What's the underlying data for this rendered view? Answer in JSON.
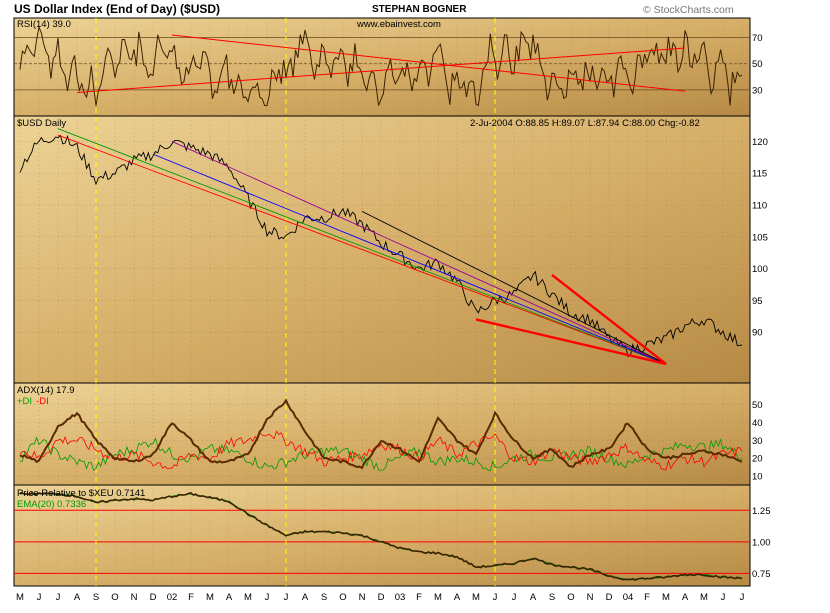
{
  "header": {
    "title": "US Dollar Index (End of Day) ($USD)",
    "author": "STEPHAN BOGNER",
    "website": "www.ebainvest.com",
    "copyright": "© StockCharts.com"
  },
  "colors": {
    "background_gradient": [
      "#e9cd91",
      "#b68a45"
    ],
    "price_line": "#000000",
    "red": "#ff0000",
    "green": "#009900",
    "blue": "#0000ff",
    "purple": "#990099",
    "adx_line": "#5a2a00",
    "cycle_marker": "#ffff00",
    "rsi_fill": "#e0a000"
  },
  "chart_data": [
    {
      "type": "line",
      "panel": "rsi",
      "label": "RSI(14) 39.0",
      "ylim": [
        10,
        85
      ],
      "y_ticks": [
        70,
        50,
        30
      ],
      "levels": [
        70,
        50,
        30
      ],
      "trendlines": [
        {
          "from": [
            "2001-08",
            28
          ],
          "to": [
            "2004-04",
            62
          ]
        },
        {
          "from": [
            "2002-01",
            72
          ],
          "to": [
            "2004-04",
            29
          ]
        }
      ]
    },
    {
      "type": "line",
      "panel": "price",
      "label": "$USD Daily",
      "quote": "2-Ju-2004  O:88.85  H:89.07  L:87.94  C:88.00  Chg:-0.82",
      "ylim": [
        82,
        124
      ],
      "y_ticks": [
        120,
        115,
        110,
        105,
        100,
        95,
        90
      ],
      "x_ticks": [
        "M",
        "J",
        "J",
        "A",
        "S",
        "O",
        "N",
        "D",
        "02",
        "F",
        "M",
        "A",
        "M",
        "J",
        "J",
        "A",
        "S",
        "O",
        "N",
        "D",
        "03",
        "F",
        "M",
        "A",
        "M",
        "J",
        "J",
        "A",
        "S",
        "O",
        "N",
        "D",
        "04",
        "F",
        "M",
        "A",
        "M",
        "J",
        "J"
      ],
      "series": [
        {
          "x": [
            "2001-05",
            "2001-06",
            "2001-07",
            "2001-08",
            "2001-09",
            "2001-10",
            "2001-11",
            "2001-12",
            "2002-01",
            "2002-02",
            "2002-03",
            "2002-04",
            "2002-05",
            "2002-06",
            "2002-07",
            "2002-08",
            "2002-09",
            "2002-10",
            "2002-11",
            "2002-12",
            "2003-01",
            "2003-02",
            "2003-03",
            "2003-04",
            "2003-05",
            "2003-06",
            "2003-07",
            "2003-08",
            "2003-09",
            "2003-10",
            "2003-11",
            "2003-12",
            "2004-01",
            "2004-02",
            "2004-03",
            "2004-04",
            "2004-05",
            "2004-06",
            "2004-07"
          ],
          "values": [
            116,
            120,
            121,
            119,
            114,
            115,
            117,
            118,
            120,
            119,
            118,
            116,
            111,
            106,
            105,
            108,
            108,
            109,
            107,
            104,
            102,
            100,
            101,
            98,
            93,
            95,
            96,
            99,
            96,
            93,
            92,
            89,
            87,
            88,
            89,
            91,
            92,
            90,
            88
          ]
        }
      ],
      "trendlines": [
        {
          "color": "red",
          "from": [
            "2001-07",
            121
          ],
          "to": [
            "2004-03",
            85
          ]
        },
        {
          "color": "green",
          "from": [
            "2001-07",
            122
          ],
          "to": [
            "2004-03",
            85
          ]
        },
        {
          "color": "blue",
          "from": [
            "2001-12",
            118
          ],
          "to": [
            "2004-03",
            85
          ]
        },
        {
          "color": "purple",
          "from": [
            "2002-01",
            120
          ],
          "to": [
            "2004-03",
            85
          ]
        },
        {
          "color": "black",
          "from": [
            "2002-11",
            109
          ],
          "to": [
            "2004-03",
            85
          ]
        },
        {
          "color": "red",
          "width": "thick",
          "from": [
            "2003-09",
            99
          ],
          "to": [
            "2004-03",
            85
          ]
        },
        {
          "color": "red",
          "width": "thick",
          "from": [
            "2003-05",
            92
          ],
          "to": [
            "2004-03",
            85
          ]
        }
      ]
    },
    {
      "type": "line",
      "panel": "adx",
      "label": "ADX(14) 17.9",
      "legend": [
        {
          "text": "+DI",
          "color": "green"
        },
        {
          "text": "-DI",
          "color": "red"
        }
      ],
      "ylim": [
        5,
        62
      ],
      "y_ticks": [
        50,
        40,
        30,
        20,
        10
      ],
      "series": [
        {
          "name": "ADX(14)",
          "values": [
            22,
            18,
            38,
            45,
            30,
            20,
            18,
            22,
            40,
            30,
            18,
            18,
            22,
            42,
            52,
            35,
            20,
            18,
            15,
            30,
            25,
            18,
            42,
            30,
            22,
            45,
            30,
            20,
            25,
            15,
            22,
            25,
            40,
            25,
            20,
            22,
            24,
            22,
            18
          ]
        },
        {
          "name": "+DI",
          "values": [
            20,
            30,
            22,
            18,
            15,
            22,
            25,
            30,
            22,
            20,
            25,
            24,
            20,
            15,
            18,
            22,
            24,
            24,
            20,
            15,
            20,
            24,
            18,
            20,
            18,
            15,
            20,
            22,
            20,
            22,
            24,
            20,
            16,
            22,
            24,
            28,
            26,
            28,
            20
          ]
        },
        {
          "name": "-DI",
          "values": [
            25,
            20,
            30,
            30,
            25,
            20,
            22,
            18,
            15,
            22,
            20,
            28,
            30,
            35,
            30,
            24,
            18,
            20,
            22,
            28,
            25,
            20,
            30,
            22,
            28,
            32,
            20,
            18,
            25,
            20,
            18,
            22,
            26,
            18,
            16,
            20,
            18,
            22,
            24
          ]
        }
      ]
    },
    {
      "type": "line",
      "panel": "ratio",
      "label": "Price Relative to $XEU  0.7141",
      "label2": "EMA(20) 0.7336",
      "ylim": [
        0.65,
        1.45
      ],
      "y_ticks": [
        1.25,
        1.0,
        0.75
      ],
      "levels": [
        1.25,
        1.0,
        0.75
      ],
      "series": [
        {
          "name": "Price Relative",
          "values": [
            1.38,
            1.38,
            1.38,
            1.36,
            1.31,
            1.33,
            1.34,
            1.33,
            1.36,
            1.38,
            1.35,
            1.32,
            1.22,
            1.13,
            1.05,
            1.08,
            1.08,
            1.07,
            1.05,
            1.0,
            0.95,
            0.92,
            0.91,
            0.88,
            0.8,
            0.81,
            0.83,
            0.87,
            0.82,
            0.8,
            0.78,
            0.73,
            0.7,
            0.71,
            0.72,
            0.74,
            0.74,
            0.72,
            0.71
          ]
        }
      ]
    }
  ],
  "cycle_markers": [
    "2001-09",
    "2002-07",
    "2003-06"
  ]
}
